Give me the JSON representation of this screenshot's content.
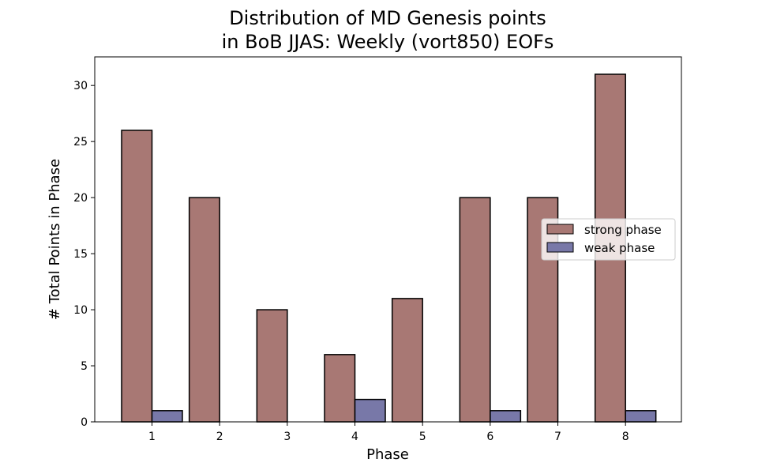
{
  "chart_data": {
    "type": "bar",
    "title_lines": [
      "Distribution of MD Genesis points",
      "in BoB JJAS: Weekly (vort850) EOFs"
    ],
    "xlabel": "Phase",
    "ylabel": "# Total Points in Phase",
    "categories": [
      "1",
      "2",
      "3",
      "4",
      "5",
      "6",
      "7",
      "8"
    ],
    "series": [
      {
        "name": "strong phase",
        "color": "#a87874",
        "values": [
          26,
          20,
          10,
          6,
          11,
          20,
          20,
          31
        ]
      },
      {
        "name": "weak phase",
        "color": "#7878a8",
        "values": [
          1,
          0,
          0,
          2,
          0,
          1,
          0,
          1
        ]
      }
    ],
    "ylim": [
      0,
      32.55
    ],
    "yticks": [
      "0",
      "5",
      "10",
      "15",
      "20",
      "25",
      "30"
    ],
    "grid": false,
    "legend_position": "right"
  }
}
